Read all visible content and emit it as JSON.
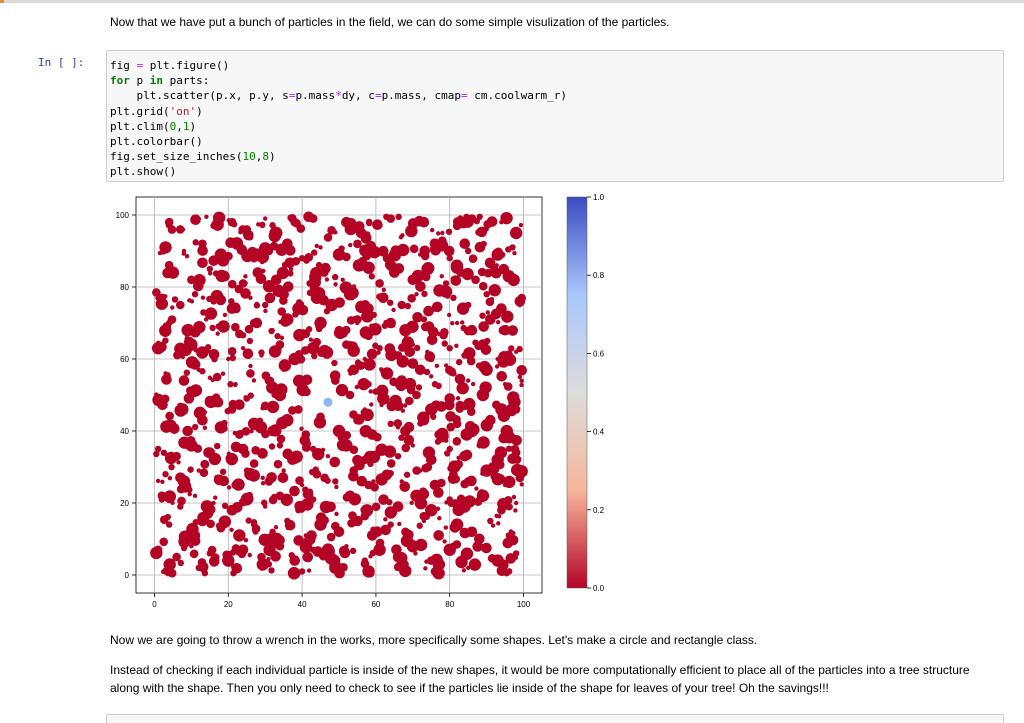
{
  "markdown": {
    "intro": "Now that we have put a bunch of particles in the field, we can do some simple visulization of the particles.",
    "after1": "Now we are going to throw a wrench in the works, more specifically some shapes. Let's make a circle and rectangle class.",
    "after2": "Instead of checking if each individual particle is inside of the new shapes, it would be more computationally efficient to place all of the particles into a tree structure along with the shape. Then you only need to check to see if the particles lie inside of the shape for leaves of your tree! Oh the savings!!!"
  },
  "cell": {
    "prompt": "In [ ]:",
    "lines": [
      "fig = plt.figure()",
      "for p in parts:",
      "    plt.scatter(p.x, p.y, s=p.mass*dy, c=p.mass, cmap= cm.coolwarm_r)",
      "plt.grid('on')",
      "plt.clim(0,1)",
      "plt.colorbar()",
      "fig.set_size_inches(10,8)",
      "plt.show()"
    ]
  },
  "chart_data": {
    "type": "scatter",
    "xlim": [
      -5,
      105
    ],
    "ylim": [
      -5,
      105
    ],
    "xticks": [
      0,
      20,
      40,
      60,
      80,
      100
    ],
    "yticks": [
      0,
      20,
      40,
      60,
      80,
      100
    ],
    "grid": true,
    "colorbar": {
      "ticks": [
        "0.0",
        "0.2",
        "0.4",
        "0.6",
        "0.8",
        "1.0"
      ],
      "cmap": "coolwarm_r",
      "colors": [
        "#b40426",
        "#f7b79b",
        "#dddcdc",
        "#aac7fd",
        "#3b4cc0"
      ]
    },
    "series": [
      {
        "color": "#b40426",
        "note_count": 600,
        "points": [
          [
            4,
            98
          ],
          [
            7,
            96
          ],
          [
            12,
            99
          ],
          [
            16,
            97
          ],
          [
            21,
            98
          ],
          [
            25,
            96
          ],
          [
            30,
            99
          ],
          [
            33,
            95
          ],
          [
            38,
            98
          ],
          [
            43,
            99
          ],
          [
            48,
            96
          ],
          [
            52,
            98
          ],
          [
            56,
            95
          ],
          [
            60,
            98
          ],
          [
            64,
            99
          ],
          [
            69,
            96
          ],
          [
            73,
            98
          ],
          [
            78,
            95
          ],
          [
            82,
            97
          ],
          [
            86,
            99
          ],
          [
            90,
            96
          ],
          [
            94,
            98
          ],
          [
            98,
            95
          ],
          [
            3,
            91
          ],
          [
            8,
            90
          ],
          [
            13,
            92
          ],
          [
            18,
            89
          ],
          [
            22,
            91
          ],
          [
            27,
            88
          ],
          [
            31,
            90
          ],
          [
            36,
            92
          ],
          [
            40,
            88
          ],
          [
            45,
            91
          ],
          [
            50,
            89
          ],
          [
            55,
            92
          ],
          [
            59,
            90
          ],
          [
            63,
            88
          ],
          [
            67,
            91
          ],
          [
            72,
            89
          ],
          [
            76,
            92
          ],
          [
            80,
            88
          ],
          [
            85,
            90
          ],
          [
            89,
            92
          ],
          [
            93,
            89
          ],
          [
            97,
            91
          ],
          [
            5,
            84
          ],
          [
            10,
            82
          ],
          [
            15,
            85
          ],
          [
            19,
            83
          ],
          [
            24,
            81
          ],
          [
            28,
            84
          ],
          [
            33,
            82
          ],
          [
            37,
            85
          ],
          [
            42,
            81
          ],
          [
            46,
            84
          ],
          [
            51,
            82
          ],
          [
            56,
            85
          ],
          [
            61,
            81
          ],
          [
            65,
            84
          ],
          [
            70,
            82
          ],
          [
            74,
            85
          ],
          [
            79,
            81
          ],
          [
            83,
            84
          ],
          [
            87,
            82
          ],
          [
            92,
            85
          ],
          [
            96,
            83
          ],
          [
            2,
            77
          ],
          [
            7,
            75
          ],
          [
            11,
            78
          ],
          [
            16,
            76
          ],
          [
            21,
            74
          ],
          [
            26,
            77
          ],
          [
            30,
            75
          ],
          [
            35,
            78
          ],
          [
            39,
            74
          ],
          [
            44,
            77
          ],
          [
            48,
            75
          ],
          [
            53,
            78
          ],
          [
            58,
            74
          ],
          [
            62,
            77
          ],
          [
            67,
            75
          ],
          [
            71,
            78
          ],
          [
            76,
            74
          ],
          [
            81,
            77
          ],
          [
            85,
            75
          ],
          [
            90,
            78
          ],
          [
            94,
            74
          ],
          [
            99,
            76
          ],
          [
            4,
            70
          ],
          [
            9,
            68
          ],
          [
            14,
            71
          ],
          [
            18,
            69
          ],
          [
            23,
            67
          ],
          [
            27,
            70
          ],
          [
            32,
            68
          ],
          [
            36,
            71
          ],
          [
            41,
            67
          ],
          [
            45,
            70
          ],
          [
            50,
            68
          ],
          [
            55,
            71
          ],
          [
            59,
            67
          ],
          [
            64,
            70
          ],
          [
            68,
            68
          ],
          [
            73,
            71
          ],
          [
            77,
            67
          ],
          [
            82,
            70
          ],
          [
            86,
            68
          ],
          [
            91,
            71
          ],
          [
            95,
            68
          ],
          [
            1,
            63
          ],
          [
            6,
            61
          ],
          [
            10,
            64
          ],
          [
            15,
            62
          ],
          [
            20,
            60
          ],
          [
            24,
            63
          ],
          [
            29,
            61
          ],
          [
            34,
            64
          ],
          [
            38,
            60
          ],
          [
            43,
            63
          ],
          [
            47,
            61
          ],
          [
            52,
            64
          ],
          [
            57,
            60
          ],
          [
            61,
            63
          ],
          [
            66,
            61
          ],
          [
            70,
            64
          ],
          [
            75,
            60
          ],
          [
            80,
            63
          ],
          [
            84,
            61
          ],
          [
            89,
            64
          ],
          [
            93,
            60
          ],
          [
            98,
            62
          ],
          [
            3,
            56
          ],
          [
            8,
            54
          ],
          [
            12,
            57
          ],
          [
            17,
            55
          ],
          [
            22,
            53
          ],
          [
            26,
            56
          ],
          [
            31,
            54
          ],
          [
            35,
            57
          ],
          [
            40,
            53
          ],
          [
            49,
            54
          ],
          [
            54,
            57
          ],
          [
            58,
            53
          ],
          [
            63,
            56
          ],
          [
            67,
            54
          ],
          [
            72,
            57
          ],
          [
            76,
            53
          ],
          [
            81,
            56
          ],
          [
            85,
            54
          ],
          [
            90,
            57
          ],
          [
            95,
            53
          ],
          [
            99,
            55
          ],
          [
            2,
            49
          ],
          [
            7,
            47
          ],
          [
            11,
            50
          ],
          [
            16,
            48
          ],
          [
            21,
            46
          ],
          [
            25,
            49
          ],
          [
            30,
            47
          ],
          [
            34,
            50
          ],
          [
            39,
            46
          ],
          [
            53,
            50
          ],
          [
            57,
            46
          ],
          [
            62,
            49
          ],
          [
            66,
            47
          ],
          [
            71,
            50
          ],
          [
            75,
            46
          ],
          [
            80,
            49
          ],
          [
            84,
            47
          ],
          [
            89,
            50
          ],
          [
            94,
            46
          ],
          [
            98,
            48
          ],
          [
            4,
            42
          ],
          [
            9,
            40
          ],
          [
            13,
            43
          ],
          [
            18,
            41
          ],
          [
            23,
            39
          ],
          [
            27,
            42
          ],
          [
            32,
            40
          ],
          [
            36,
            43
          ],
          [
            41,
            39
          ],
          [
            45,
            42
          ],
          [
            50,
            40
          ],
          [
            55,
            43
          ],
          [
            59,
            39
          ],
          [
            64,
            42
          ],
          [
            68,
            40
          ],
          [
            73,
            43
          ],
          [
            77,
            39
          ],
          [
            82,
            42
          ],
          [
            86,
            40
          ],
          [
            91,
            43
          ],
          [
            96,
            39
          ],
          [
            1,
            35
          ],
          [
            6,
            33
          ],
          [
            10,
            36
          ],
          [
            15,
            34
          ],
          [
            20,
            32
          ],
          [
            24,
            35
          ],
          [
            29,
            33
          ],
          [
            34,
            36
          ],
          [
            38,
            32
          ],
          [
            43,
            35
          ],
          [
            47,
            33
          ],
          [
            52,
            36
          ],
          [
            57,
            32
          ],
          [
            61,
            35
          ],
          [
            66,
            33
          ],
          [
            70,
            36
          ],
          [
            75,
            32
          ],
          [
            80,
            35
          ],
          [
            84,
            33
          ],
          [
            89,
            36
          ],
          [
            93,
            32
          ],
          [
            98,
            34
          ],
          [
            3,
            28
          ],
          [
            8,
            26
          ],
          [
            12,
            29
          ],
          [
            17,
            27
          ],
          [
            22,
            25
          ],
          [
            26,
            28
          ],
          [
            31,
            26
          ],
          [
            35,
            29
          ],
          [
            40,
            25
          ],
          [
            44,
            28
          ],
          [
            49,
            26
          ],
          [
            54,
            29
          ],
          [
            58,
            25
          ],
          [
            63,
            28
          ],
          [
            67,
            26
          ],
          [
            72,
            29
          ],
          [
            76,
            25
          ],
          [
            81,
            28
          ],
          [
            85,
            26
          ],
          [
            90,
            29
          ],
          [
            95,
            25
          ],
          [
            99,
            27
          ],
          [
            2,
            21
          ],
          [
            7,
            19
          ],
          [
            11,
            22
          ],
          [
            16,
            20
          ],
          [
            21,
            18
          ],
          [
            25,
            21
          ],
          [
            30,
            19
          ],
          [
            34,
            22
          ],
          [
            39,
            18
          ],
          [
            43,
            21
          ],
          [
            48,
            19
          ],
          [
            53,
            22
          ],
          [
            57,
            18
          ],
          [
            62,
            21
          ],
          [
            66,
            19
          ],
          [
            71,
            22
          ],
          [
            75,
            18
          ],
          [
            80,
            21
          ],
          [
            84,
            19
          ],
          [
            89,
            22
          ],
          [
            94,
            18
          ],
          [
            98,
            20
          ],
          [
            4,
            14
          ],
          [
            9,
            12
          ],
          [
            13,
            15
          ],
          [
            18,
            13
          ],
          [
            23,
            11
          ],
          [
            27,
            14
          ],
          [
            32,
            12
          ],
          [
            36,
            15
          ],
          [
            41,
            11
          ],
          [
            45,
            14
          ],
          [
            50,
            12
          ],
          [
            55,
            15
          ],
          [
            59,
            11
          ],
          [
            64,
            14
          ],
          [
            68,
            12
          ],
          [
            73,
            15
          ],
          [
            77,
            11
          ],
          [
            82,
            14
          ],
          [
            86,
            12
          ],
          [
            91,
            15
          ],
          [
            96,
            11
          ],
          [
            1,
            7
          ],
          [
            6,
            5
          ],
          [
            10,
            8
          ],
          [
            15,
            6
          ],
          [
            20,
            4
          ],
          [
            24,
            7
          ],
          [
            29,
            5
          ],
          [
            34,
            8
          ],
          [
            38,
            4
          ],
          [
            43,
            7
          ],
          [
            47,
            5
          ],
          [
            52,
            8
          ],
          [
            57,
            4
          ],
          [
            61,
            7
          ],
          [
            66,
            5
          ],
          [
            70,
            8
          ],
          [
            75,
            4
          ],
          [
            80,
            7
          ],
          [
            84,
            5
          ],
          [
            89,
            8
          ],
          [
            93,
            4
          ],
          [
            98,
            6
          ],
          [
            3,
            1
          ],
          [
            12,
            2
          ],
          [
            22,
            1
          ],
          [
            31,
            3
          ],
          [
            40,
            1
          ],
          [
            49,
            2
          ],
          [
            58,
            1
          ],
          [
            67,
            3
          ],
          [
            76,
            1
          ],
          [
            85,
            2
          ],
          [
            94,
            1
          ]
        ]
      },
      {
        "color": "#8fb4fe",
        "points": [
          [
            47,
            48
          ]
        ]
      }
    ]
  }
}
